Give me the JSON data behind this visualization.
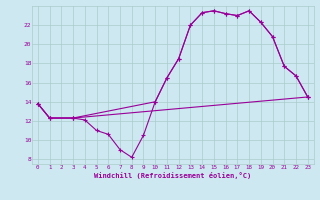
{
  "bg_color": "#cde8f0",
  "line_color": "#990099",
  "grid_color": "#aacccc",
  "xlabel": "Windchill (Refroidissement éolien,°C)",
  "ylim": [
    7.5,
    24.0
  ],
  "xlim": [
    -0.5,
    23.5
  ],
  "yticks": [
    8,
    10,
    12,
    14,
    16,
    18,
    20,
    22
  ],
  "xticks": [
    0,
    1,
    2,
    3,
    4,
    5,
    6,
    7,
    8,
    9,
    10,
    11,
    12,
    13,
    14,
    15,
    16,
    17,
    18,
    19,
    20,
    21,
    22,
    23
  ],
  "line1_x": [
    0,
    1,
    3,
    4,
    5,
    6,
    7,
    8,
    9,
    10,
    11,
    12,
    13,
    14,
    15,
    16,
    17,
    18,
    19,
    20,
    21,
    22,
    23
  ],
  "line1_y": [
    13.8,
    12.3,
    12.3,
    12.1,
    11.0,
    10.6,
    9.0,
    8.2,
    10.5,
    14.0,
    16.5,
    18.5,
    22.0,
    23.3,
    23.5,
    23.2,
    23.0,
    23.5,
    22.3,
    20.8,
    17.7,
    16.7,
    14.5
  ],
  "line2_x": [
    0,
    1,
    3,
    10,
    11,
    12,
    13,
    14,
    15,
    16,
    17,
    18,
    19,
    20,
    21,
    22,
    23
  ],
  "line2_y": [
    13.8,
    12.3,
    12.3,
    14.0,
    16.5,
    18.5,
    22.0,
    23.3,
    23.5,
    23.2,
    23.0,
    23.5,
    22.3,
    20.8,
    17.7,
    16.7,
    14.5
  ],
  "line3_x": [
    0,
    1,
    3,
    23
  ],
  "line3_y": [
    13.8,
    12.3,
    12.3,
    14.5
  ]
}
